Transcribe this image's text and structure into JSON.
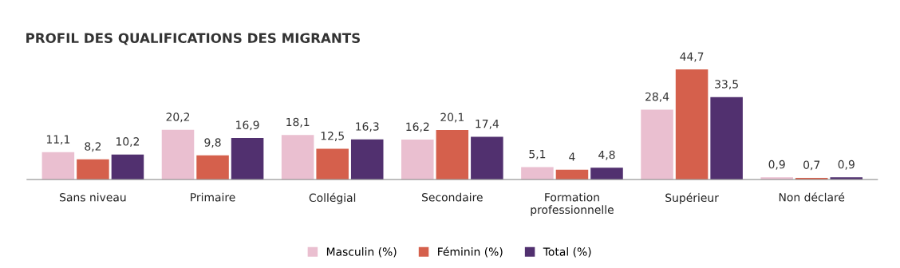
{
  "chart_data": {
    "type": "bar",
    "title": "PROFIL DES QUALIFICATIONS DES MIGRANTS",
    "categories": [
      "Sans niveau",
      "Primaire",
      "Collégial",
      "Secondaire",
      "Formation\nprofessionnelle",
      "Supérieur",
      "Non déclaré"
    ],
    "series": [
      {
        "name": "Masculin (%)",
        "color": "#eabfd0",
        "values": [
          11.1,
          20.2,
          18.1,
          16.2,
          5.1,
          28.4,
          0.9
        ],
        "value_labels": [
          "11,1",
          "20,2",
          "18,1",
          "16,2",
          "5,1",
          "28,4",
          "0,9"
        ]
      },
      {
        "name": "Féminin (%)",
        "color": "#d5604c",
        "values": [
          8.2,
          9.8,
          12.5,
          20.1,
          4,
          44.7,
          0.7
        ],
        "value_labels": [
          "8,2",
          "9,8",
          "12,5",
          "20,1",
          "4",
          "44,7",
          "0,7"
        ]
      },
      {
        "name": "Total (%)",
        "color": "#51306f",
        "values": [
          10.2,
          16.9,
          16.3,
          17.4,
          4.8,
          33.5,
          0.9
        ],
        "value_labels": [
          "10,2",
          "16,9",
          "16,3",
          "17,4",
          "4,8",
          "33,5",
          "0,9"
        ]
      }
    ],
    "legend": "bottom",
    "grid": false,
    "tick_labels": "x"
  }
}
